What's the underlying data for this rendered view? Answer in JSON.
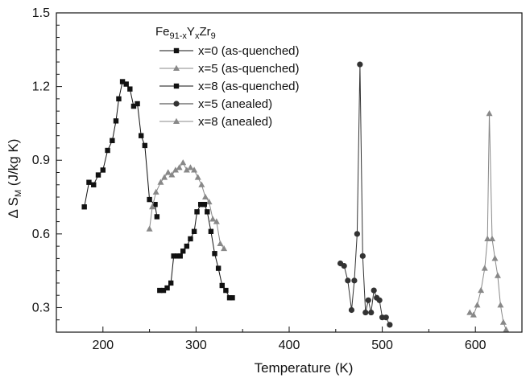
{
  "chart_data": {
    "type": "line",
    "xlabel": "Temperature (K)",
    "ylabel": "Δ S_M (J/kg K)",
    "ylabel_parts": {
      "delta": "Δ S",
      "sub": "M",
      "unit": " (J/kg K)"
    },
    "xlim": [
      150,
      650
    ],
    "ylim": [
      0.2,
      1.5
    ],
    "xticks": [
      200,
      300,
      400,
      500,
      600
    ],
    "yticks": [
      0.3,
      0.6,
      0.9,
      1.2,
      1.5
    ],
    "ytick_labels": [
      "0.3",
      "0.6",
      "0.9",
      "1.2",
      "1.5"
    ],
    "legend_placement": "top-left",
    "legend_title": "Fe91-xYxZr9",
    "legend_title_parts": {
      "fe": "Fe",
      "fe_sub": "91-x",
      "y": "Y",
      "y_sub": "x",
      "zr": "Zr",
      "zr_sub": "9"
    },
    "series": [
      {
        "name": "x=0 (as-quenched)",
        "marker": "square",
        "color": "#111111",
        "points": [
          [
            180,
            0.71
          ],
          [
            185,
            0.81
          ],
          [
            190,
            0.8
          ],
          [
            195,
            0.84
          ],
          [
            200,
            0.86
          ],
          [
            205,
            0.94
          ],
          [
            210,
            0.98
          ],
          [
            214,
            1.06
          ],
          [
            217,
            1.15
          ],
          [
            221,
            1.22
          ],
          [
            225,
            1.21
          ],
          [
            229,
            1.19
          ],
          [
            233,
            1.12
          ],
          [
            237,
            1.13
          ],
          [
            241,
            1.0
          ],
          [
            245,
            0.96
          ],
          [
            250,
            0.74
          ],
          [
            256,
            0.72
          ],
          [
            258,
            0.67
          ]
        ]
      },
      {
        "name": "x=5 (as-quenched)",
        "marker": "triangle",
        "color": "#888888",
        "points": [
          [
            250,
            0.62
          ],
          [
            253,
            0.71
          ],
          [
            257,
            0.77
          ],
          [
            262,
            0.81
          ],
          [
            266,
            0.83
          ],
          [
            270,
            0.85
          ],
          [
            274,
            0.84
          ],
          [
            278,
            0.86
          ],
          [
            282,
            0.87
          ],
          [
            286,
            0.89
          ],
          [
            290,
            0.86
          ],
          [
            294,
            0.87
          ],
          [
            298,
            0.86
          ],
          [
            302,
            0.83
          ],
          [
            306,
            0.8
          ],
          [
            310,
            0.75
          ],
          [
            314,
            0.73
          ],
          [
            318,
            0.66
          ],
          [
            322,
            0.65
          ],
          [
            326,
            0.56
          ],
          [
            330,
            0.54
          ]
        ]
      },
      {
        "name": "x=8 (as-quenched)",
        "marker": "square",
        "color": "#111111",
        "points": [
          [
            261,
            0.37
          ],
          [
            265,
            0.37
          ],
          [
            269,
            0.38
          ],
          [
            273,
            0.4
          ],
          [
            276,
            0.51
          ],
          [
            280,
            0.51
          ],
          [
            283,
            0.51
          ],
          [
            286,
            0.53
          ],
          [
            290,
            0.55
          ],
          [
            294,
            0.58
          ],
          [
            298,
            0.61
          ],
          [
            301,
            0.69
          ],
          [
            305,
            0.72
          ],
          [
            309,
            0.72
          ],
          [
            312,
            0.69
          ],
          [
            316,
            0.61
          ],
          [
            320,
            0.52
          ],
          [
            324,
            0.46
          ],
          [
            328,
            0.39
          ],
          [
            332,
            0.37
          ],
          [
            336,
            0.34
          ],
          [
            339,
            0.34
          ]
        ]
      },
      {
        "name": "x=5 (anealed)",
        "marker": "circle",
        "color": "#333333",
        "points": [
          [
            455,
            0.48
          ],
          [
            459,
            0.47
          ],
          [
            463,
            0.41
          ],
          [
            467,
            0.29
          ],
          [
            470,
            0.41
          ],
          [
            473,
            0.6
          ],
          [
            476,
            1.29
          ],
          [
            479,
            0.51
          ],
          [
            482,
            0.28
          ],
          [
            485,
            0.33
          ],
          [
            488,
            0.28
          ],
          [
            491,
            0.37
          ],
          [
            494,
            0.34
          ],
          [
            497,
            0.33
          ],
          [
            500,
            0.26
          ],
          [
            504,
            0.26
          ],
          [
            508,
            0.23
          ]
        ]
      },
      {
        "name": "x=8 (anealed)",
        "marker": "triangle",
        "color": "#888888",
        "points": [
          [
            594,
            0.28
          ],
          [
            598,
            0.27
          ],
          [
            602,
            0.31
          ],
          [
            606,
            0.37
          ],
          [
            610,
            0.46
          ],
          [
            613,
            0.58
          ],
          [
            615,
            1.09
          ],
          [
            618,
            0.58
          ],
          [
            621,
            0.5
          ],
          [
            624,
            0.43
          ],
          [
            627,
            0.31
          ],
          [
            630,
            0.24
          ],
          [
            633,
            0.21
          ]
        ]
      }
    ]
  }
}
